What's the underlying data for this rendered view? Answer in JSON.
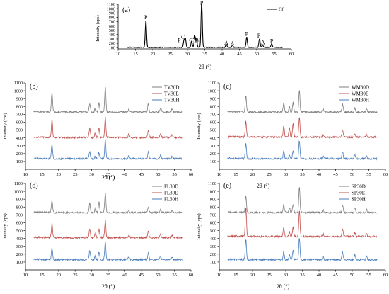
{
  "chart_data": [
    {
      "id": "a",
      "type": "line",
      "panel_label": "(a)",
      "xlabel": "2θ (°)",
      "ylabel": "Intensity (cps)",
      "xlim": [
        10,
        60
      ],
      "ylim": [
        70,
        1100
      ],
      "x_ticks": [
        10,
        15,
        20,
        25,
        30,
        35,
        40,
        45,
        50,
        55,
        60
      ],
      "y_ticks": [
        100,
        200,
        300,
        400,
        500,
        600,
        700,
        800,
        900,
        1000,
        1100
      ],
      "legend_position": "top-right",
      "series": [
        {
          "name": "C0",
          "color": "#000000",
          "baseline": 105,
          "peaks": [
            [
              18.0,
              620
            ],
            [
              29.0,
              165
            ],
            [
              29.4,
              195
            ],
            [
              31.2,
              140
            ],
            [
              32.1,
              250
            ],
            [
              32.6,
              175
            ],
            [
              34.1,
              1080
            ],
            [
              41.2,
              75
            ],
            [
              43.0,
              55
            ],
            [
              47.1,
              240
            ],
            [
              50.8,
              200
            ],
            [
              51.7,
              55
            ],
            [
              54.3,
              85
            ]
          ]
        }
      ],
      "annotations": [
        {
          "text": "P",
          "x": 18.0,
          "y": 760
        },
        {
          "text": "C",
          "x": 28.7,
          "y": 300
        },
        {
          "text": "P",
          "x": 27.6,
          "y": 225
        },
        {
          "text": "C",
          "x": 31.0,
          "y": 225
        },
        {
          "text": "A",
          "x": 32.1,
          "y": 300
        },
        {
          "text": "B",
          "x": 32.7,
          "y": 225
        },
        {
          "text": "P",
          "x": 34.1,
          "y": 1090
        },
        {
          "text": "A",
          "x": 41.2,
          "y": 170
        },
        {
          "text": "A",
          "x": 43.0,
          "y": 150
        },
        {
          "text": "P",
          "x": 47.1,
          "y": 370
        },
        {
          "text": "P",
          "x": 50.6,
          "y": 330
        },
        {
          "text": "A",
          "x": 51.8,
          "y": 180
        },
        {
          "text": "P",
          "x": 54.3,
          "y": 210
        }
      ]
    },
    {
      "id": "b",
      "type": "line",
      "panel_label": "(b)",
      "xlabel": "2θ (°)",
      "ylabel": "Intensity (cps)",
      "xlim": [
        10,
        60
      ],
      "ylim": [
        0,
        1100
      ],
      "x_ticks": [
        10,
        15,
        20,
        25,
        30,
        35,
        40,
        45,
        50,
        55,
        60
      ],
      "y_ticks": [
        100,
        200,
        300,
        400,
        500,
        600,
        700,
        800,
        900,
        1000,
        1100
      ],
      "legend_position": "top-right",
      "series": [
        {
          "name": "TV30D",
          "color": "#7f7f7f",
          "baseline": 730,
          "peaks": [
            [
              18.0,
              250
            ],
            [
              29.4,
              110
            ],
            [
              31.1,
              60
            ],
            [
              32.2,
              120
            ],
            [
              34.1,
              330
            ],
            [
              41.2,
              40
            ],
            [
              47.1,
              110
            ],
            [
              50.8,
              60
            ],
            [
              54.3,
              40
            ]
          ]
        },
        {
          "name": "TV30E",
          "color": "#c0504d",
          "baseline": 405,
          "peaks": [
            [
              18.0,
              230
            ],
            [
              29.4,
              120
            ],
            [
              31.1,
              70
            ],
            [
              32.2,
              130
            ],
            [
              34.1,
              250
            ],
            [
              41.2,
              40
            ],
            [
              47.1,
              90
            ],
            [
              50.8,
              50
            ],
            [
              54.3,
              35
            ]
          ]
        },
        {
          "name": "TV30H",
          "color": "#4a7ebb",
          "baseline": 135,
          "peaks": [
            [
              18.0,
              190
            ],
            [
              29.4,
              90
            ],
            [
              31.1,
              40
            ],
            [
              32.2,
              80
            ],
            [
              34.1,
              240
            ],
            [
              41.2,
              40
            ],
            [
              47.1,
              90
            ],
            [
              50.8,
              50
            ],
            [
              54.3,
              30
            ]
          ]
        }
      ]
    },
    {
      "id": "c",
      "type": "line",
      "panel_label": "(c)",
      "xlabel": "",
      "ylabel": "Intensity (cps)",
      "xlim": [
        10,
        60
      ],
      "ylim": [
        0,
        1100
      ],
      "x_ticks": [
        10,
        15,
        20,
        25,
        30,
        35,
        40,
        45,
        50,
        55,
        60
      ],
      "y_ticks": [
        100,
        200,
        300,
        400,
        500,
        600,
        700,
        800,
        900,
        1000,
        1100
      ],
      "legend_position": "top-right",
      "series": [
        {
          "name": "WM30D",
          "color": "#7f7f7f",
          "baseline": 730,
          "peaks": [
            [
              18.0,
              200
            ],
            [
              29.4,
              120
            ],
            [
              31.1,
              70
            ],
            [
              32.2,
              120
            ],
            [
              34.1,
              280
            ],
            [
              41.2,
              40
            ],
            [
              47.1,
              100
            ],
            [
              50.8,
              50
            ],
            [
              54.3,
              40
            ]
          ]
        },
        {
          "name": "WM30E",
          "color": "#c0504d",
          "baseline": 410,
          "peaks": [
            [
              18.0,
              200
            ],
            [
              29.4,
              150
            ],
            [
              31.1,
              120
            ],
            [
              32.2,
              170
            ],
            [
              34.1,
              260
            ],
            [
              41.2,
              40
            ],
            [
              47.1,
              90
            ],
            [
              50.8,
              50
            ],
            [
              54.3,
              35
            ]
          ]
        },
        {
          "name": "WM30H",
          "color": "#4a7ebb",
          "baseline": 135,
          "peaks": [
            [
              18.0,
              190
            ],
            [
              29.4,
              100
            ],
            [
              31.1,
              50
            ],
            [
              32.2,
              100
            ],
            [
              34.1,
              230
            ],
            [
              41.2,
              40
            ],
            [
              47.1,
              90
            ],
            [
              50.8,
              50
            ],
            [
              54.3,
              30
            ]
          ]
        }
      ]
    },
    {
      "id": "d",
      "type": "line",
      "panel_label": "(d)",
      "xlabel": "2θ (°)",
      "ylabel": "Intensity (cps)",
      "xlim": [
        10,
        60
      ],
      "ylim": [
        0,
        1100
      ],
      "x_ticks": [
        10,
        15,
        20,
        25,
        30,
        35,
        40,
        45,
        50,
        55,
        60
      ],
      "y_ticks": [
        100,
        200,
        300,
        400,
        500,
        600,
        700,
        800,
        900,
        1000,
        1100
      ],
      "legend_position": "top-right",
      "series": [
        {
          "name": "FL30D",
          "color": "#7f7f7f",
          "baseline": 730,
          "peaks": [
            [
              18.0,
              150
            ],
            [
              29.4,
              120
            ],
            [
              31.1,
              60
            ],
            [
              32.2,
              140
            ],
            [
              34.1,
              260
            ],
            [
              41.2,
              30
            ],
            [
              47.1,
              70
            ],
            [
              50.8,
              40
            ],
            [
              54.3,
              30
            ]
          ]
        },
        {
          "name": "FL30E",
          "color": "#c0504d",
          "baseline": 410,
          "peaks": [
            [
              18.0,
              180
            ],
            [
              29.4,
              110
            ],
            [
              31.1,
              60
            ],
            [
              32.2,
              120
            ],
            [
              34.1,
              220
            ],
            [
              41.2,
              30
            ],
            [
              47.1,
              80
            ],
            [
              50.8,
              40
            ],
            [
              54.3,
              30
            ]
          ]
        },
        {
          "name": "FL30H",
          "color": "#4a7ebb",
          "baseline": 130,
          "peaks": [
            [
              18.0,
              150
            ],
            [
              29.4,
              120
            ],
            [
              31.1,
              60
            ],
            [
              32.2,
              100
            ],
            [
              34.1,
              230
            ],
            [
              41.2,
              40
            ],
            [
              47.1,
              80
            ],
            [
              50.8,
              50
            ],
            [
              54.3,
              30
            ]
          ]
        }
      ]
    },
    {
      "id": "e",
      "type": "line",
      "panel_label": "(e)",
      "xlabel": "2θ (°)",
      "ylabel": "Intensity (cps)",
      "xlim": [
        10,
        60
      ],
      "ylim": [
        0,
        1100
      ],
      "x_ticks": [
        10,
        15,
        20,
        25,
        30,
        35,
        40,
        45,
        50,
        55,
        60
      ],
      "y_ticks": [
        100,
        200,
        300,
        400,
        500,
        600,
        700,
        800,
        900,
        1000,
        1100
      ],
      "legend_position": "top-right",
      "series": [
        {
          "name": "SP30D",
          "color": "#7f7f7f",
          "baseline": 730,
          "peaks": [
            [
              18.0,
              220
            ],
            [
              29.4,
              100
            ],
            [
              31.1,
              60
            ],
            [
              32.2,
              110
            ],
            [
              34.1,
              330
            ],
            [
              41.2,
              40
            ],
            [
              47.1,
              100
            ],
            [
              50.8,
              60
            ],
            [
              54.3,
              40
            ]
          ]
        },
        {
          "name": "SP30E",
          "color": "#c0504d",
          "baseline": 425,
          "peaks": [
            [
              18.0,
              380
            ],
            [
              29.4,
              110
            ],
            [
              31.1,
              60
            ],
            [
              32.2,
              120
            ],
            [
              34.1,
              340
            ],
            [
              41.2,
              40
            ],
            [
              47.1,
              100
            ],
            [
              50.8,
              50
            ],
            [
              54.3,
              35
            ]
          ]
        },
        {
          "name": "SP30H",
          "color": "#4a7ebb",
          "baseline": 130,
          "peaks": [
            [
              18.0,
              260
            ],
            [
              29.4,
              100
            ],
            [
              31.1,
              60
            ],
            [
              32.2,
              120
            ],
            [
              34.1,
              280
            ],
            [
              41.2,
              40
            ],
            [
              47.1,
              100
            ],
            [
              50.8,
              60
            ],
            [
              54.3,
              40
            ]
          ]
        }
      ]
    }
  ]
}
